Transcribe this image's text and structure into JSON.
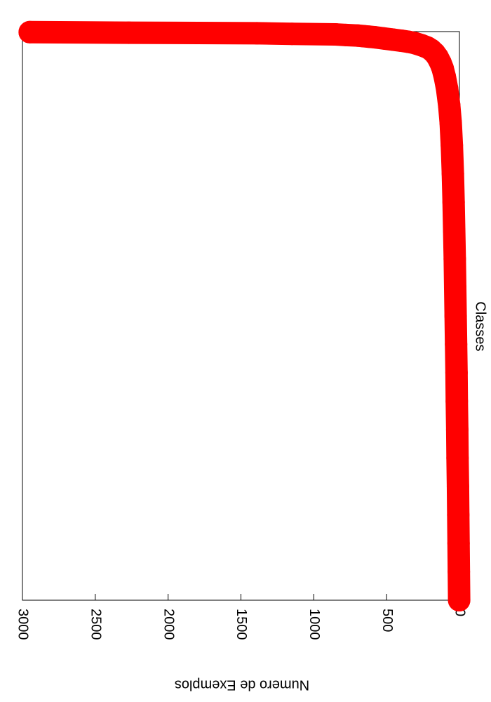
{
  "chart_data": {
    "type": "scatter",
    "x_label": "Classes",
    "y_label": "Numero de Exemplos",
    "xlim": [
      0,
      1000
    ],
    "ylim": [
      0,
      3000
    ],
    "yticks": [
      0,
      500,
      1000,
      1500,
      2000,
      2500,
      3000
    ],
    "series": [
      {
        "name": "Exemplos",
        "color": "#ff0000",
        "x": [
          1,
          2,
          3,
          4,
          5,
          6,
          7,
          8,
          9,
          10,
          12,
          14,
          16,
          18,
          20,
          24,
          28,
          32,
          38,
          45,
          55,
          65,
          80,
          100,
          130,
          160,
          200,
          250,
          300,
          350,
          400,
          450,
          500,
          550,
          600,
          650,
          700,
          750,
          800,
          850,
          900,
          950,
          1000
        ],
        "values": [
          2950,
          2270,
          1390,
          1150,
          850,
          780,
          700,
          660,
          620,
          580,
          520,
          460,
          400,
          350,
          310,
          260,
          220,
          195,
          170,
          150,
          130,
          115,
          100,
          85,
          70,
          60,
          52,
          45,
          40,
          36,
          32,
          29,
          26,
          23,
          20,
          18,
          15,
          13,
          10,
          8,
          6,
          4,
          2
        ]
      }
    ]
  }
}
